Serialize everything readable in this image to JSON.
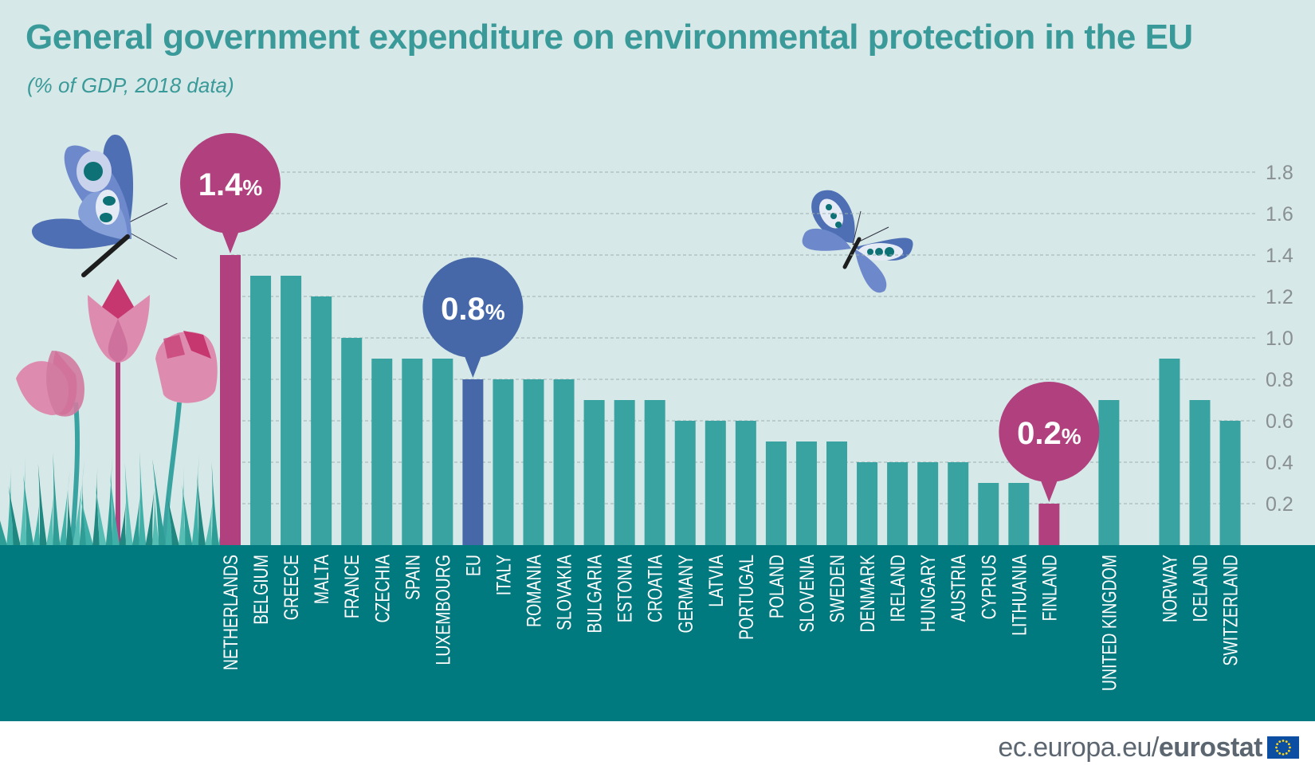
{
  "header": {
    "title": "General government expenditure on environmental protection in the EU",
    "subtitle": "(% of GDP, 2018 data)"
  },
  "callouts": [
    {
      "value": "1.4",
      "unit": "%",
      "category": "NETHERLANDS",
      "color": "#b0407e"
    },
    {
      "value": "0.8",
      "unit": "%",
      "category": "EU",
      "color": "#4668a8"
    },
    {
      "value": "0.2",
      "unit": "%",
      "category": "FINLAND",
      "color": "#b0407e"
    }
  ],
  "footer": {
    "domain": "ec.europa.eu/",
    "brand": "eurostat"
  },
  "colors": {
    "background": "#d6e8e7",
    "bar_default": "#39a3a1",
    "bar_highlight": "#b0407e",
    "bar_eu": "#4668a8",
    "ground": "#00797f",
    "title": "#3a9a99",
    "axis_text": "#8a8f94"
  },
  "icons": [
    "butterfly-icon",
    "tulip-icon",
    "grass-icon",
    "eu-flag-icon"
  ],
  "chart_data": {
    "type": "bar",
    "title": "General government expenditure on environmental protection in the EU",
    "subtitle": "(% of GDP, 2018 data)",
    "xlabel": "",
    "ylabel": "",
    "ylim": [
      0,
      1.8
    ],
    "yticks": [
      "0.2",
      "0.4",
      "0.6",
      "0.8",
      "1.0",
      "1.2",
      "1.4",
      "1.6",
      "1.8"
    ],
    "grid": true,
    "y_axis_side": "right",
    "categories": [
      "NETHERLANDS",
      "BELGIUM",
      "GREECE",
      "MALTA",
      "FRANCE",
      "CZECHIA",
      "SPAIN",
      "LUXEMBOURG",
      "EU",
      "ITALY",
      "ROMANIA",
      "SLOVAKIA",
      "BULGARIA",
      "ESTONIA",
      "CROATIA",
      "GERMANY",
      "LATVIA",
      "PORTUGAL",
      "POLAND",
      "SLOVENIA",
      "SWEDEN",
      "DENMARK",
      "IRELAND",
      "HUNGARY",
      "AUSTRIA",
      "CYPRUS",
      "LITHUANIA",
      "FINLAND",
      "UNITED KINGDOM",
      "NORWAY",
      "ICELAND",
      "SWITZERLAND"
    ],
    "values": [
      1.4,
      1.3,
      1.3,
      1.2,
      1.0,
      0.9,
      0.9,
      0.9,
      0.8,
      0.8,
      0.8,
      0.8,
      0.7,
      0.7,
      0.7,
      0.6,
      0.6,
      0.6,
      0.5,
      0.5,
      0.5,
      0.4,
      0.4,
      0.4,
      0.4,
      0.3,
      0.3,
      0.2,
      0.7,
      0.9,
      0.7,
      0.6
    ],
    "groups": [
      "main",
      "main",
      "main",
      "main",
      "main",
      "main",
      "main",
      "main",
      "main",
      "main",
      "main",
      "main",
      "main",
      "main",
      "main",
      "main",
      "main",
      "main",
      "main",
      "main",
      "main",
      "main",
      "main",
      "main",
      "main",
      "main",
      "main",
      "main",
      "uk",
      "efta",
      "efta",
      "efta"
    ],
    "highlight": {
      "NETHERLANDS": "max",
      "EU": "eu",
      "FINLAND": "min"
    }
  }
}
